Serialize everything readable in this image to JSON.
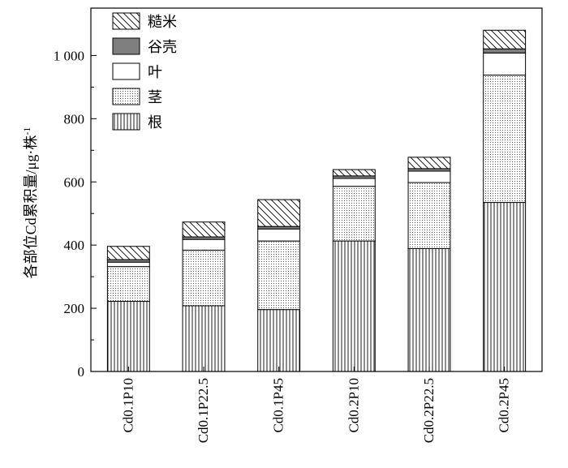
{
  "chart_data": {
    "type": "bar",
    "stacked": true,
    "ylabel": "各部位Cd累积量/μg·株",
    "ylabel_superscript": "-1",
    "ylim": [
      0,
      1150
    ],
    "yticks": [
      0,
      200,
      400,
      600,
      800,
      1000
    ],
    "ytick_labels": [
      "0",
      "200",
      "400",
      "600",
      "800",
      "1 000"
    ],
    "categories": [
      "Cd0.1P10",
      "Cd0.1P22.5",
      "Cd0.1P45",
      "Cd0.2P10",
      "Cd0.2P22.5",
      "Cd0.2P45"
    ],
    "series": [
      {
        "name": "根",
        "pattern": "vertical-lines",
        "values": [
          222,
          208,
          196,
          413,
          389,
          535
        ]
      },
      {
        "name": "茎",
        "pattern": "dots",
        "values": [
          110,
          176,
          217,
          173,
          209,
          403
        ]
      },
      {
        "name": "叶",
        "pattern": "white",
        "values": [
          14,
          34,
          38,
          25,
          36,
          70
        ]
      },
      {
        "name": "谷壳",
        "pattern": "gray",
        "values": [
          8,
          8,
          8,
          8,
          8,
          13
        ]
      },
      {
        "name": "糙米",
        "pattern": "diagonal-lines",
        "values": [
          42,
          47,
          85,
          20,
          36,
          59
        ]
      }
    ],
    "legend_position": "top-left",
    "grid": false
  }
}
